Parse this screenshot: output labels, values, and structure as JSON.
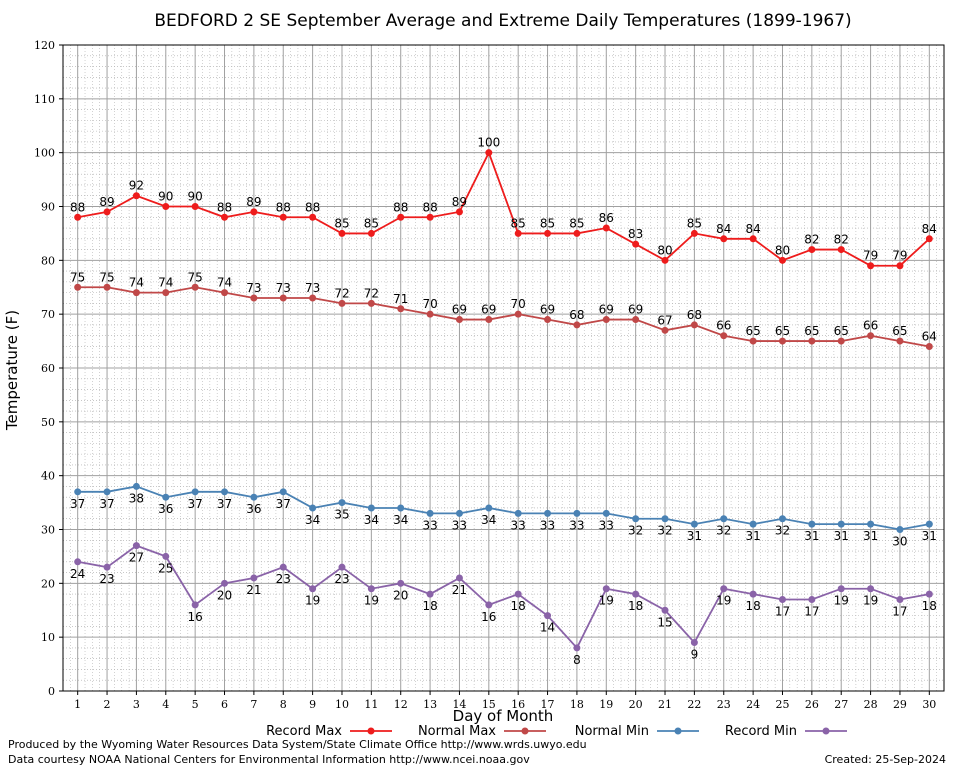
{
  "chart_data": {
    "type": "line",
    "title": "BEDFORD 2 SE September Average and Extreme Daily Temperatures (1899-1967)",
    "xlabel": "Day of Month",
    "ylabel": "Temperature (F)",
    "ylim": [
      0,
      120
    ],
    "yticks": [
      0,
      10,
      20,
      30,
      40,
      50,
      60,
      70,
      80,
      90,
      100,
      110,
      120
    ],
    "grid": true,
    "legend_position": "bottom",
    "x": [
      1,
      2,
      3,
      4,
      5,
      6,
      7,
      8,
      9,
      10,
      11,
      12,
      13,
      14,
      15,
      16,
      17,
      18,
      19,
      20,
      21,
      22,
      23,
      24,
      25,
      26,
      27,
      28,
      29,
      30
    ],
    "series": [
      {
        "name": "Record Max",
        "color": "#ee1c1c",
        "label_pos": "above",
        "values": [
          88,
          89,
          92,
          90,
          90,
          88,
          89,
          88,
          88,
          85,
          85,
          88,
          88,
          89,
          100,
          85,
          85,
          85,
          86,
          83,
          80,
          85,
          84,
          84,
          80,
          82,
          82,
          79,
          79,
          84
        ]
      },
      {
        "name": "Normal Max",
        "color": "#c04848",
        "label_pos": "above",
        "values": [
          75,
          75,
          74,
          74,
          75,
          74,
          73,
          73,
          73,
          72,
          72,
          71,
          70,
          69,
          69,
          70,
          69,
          68,
          69,
          69,
          67,
          68,
          66,
          65,
          65,
          65,
          65,
          66,
          65,
          64
        ]
      },
      {
        "name": "Normal Min",
        "color": "#4a82b4",
        "label_pos": "below",
        "values": [
          37,
          37,
          38,
          36,
          37,
          37,
          36,
          37,
          34,
          35,
          34,
          34,
          33,
          33,
          34,
          33,
          33,
          33,
          33,
          32,
          32,
          31,
          32,
          31,
          32,
          31,
          31,
          31,
          30,
          31
        ]
      },
      {
        "name": "Record Min",
        "color": "#8a63a8",
        "label_pos": "below",
        "values": [
          24,
          23,
          27,
          25,
          16,
          20,
          21,
          23,
          19,
          23,
          19,
          20,
          18,
          21,
          16,
          18,
          14,
          8,
          19,
          18,
          15,
          9,
          19,
          18,
          17,
          17,
          19,
          19,
          17,
          18
        ]
      }
    ]
  },
  "footer": {
    "line1": "Produced by the Wyoming Water Resources Data System/State Climate Office http://www.wrds.uwyo.edu",
    "line2": "Data courtesy NOAA National Centers for Environmental Information http://www.ncei.noaa.gov",
    "created": "Created:  25-Sep-2024"
  }
}
